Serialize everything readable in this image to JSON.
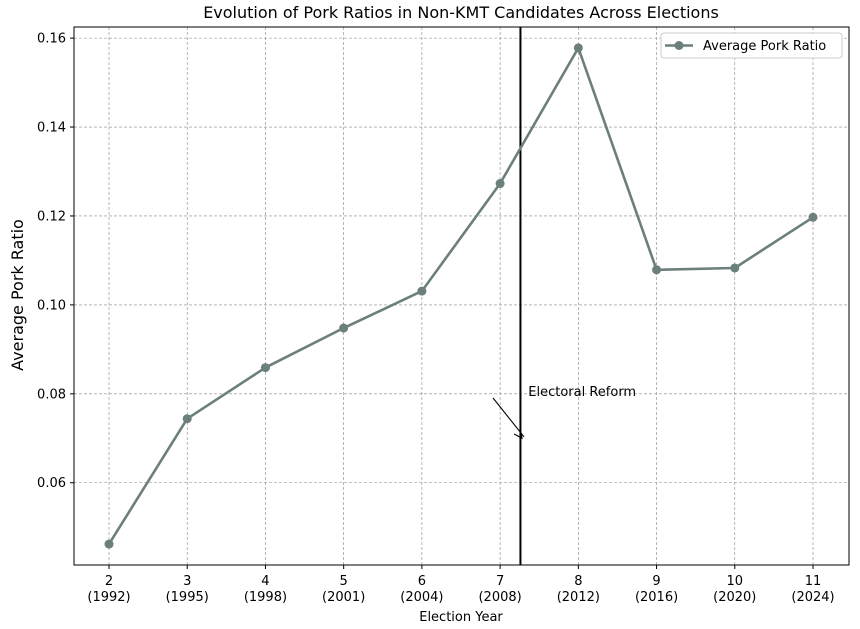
{
  "chart_data": {
    "type": "line",
    "title": "Evolution of Pork Ratios in Non-KMT Candidates Across Elections",
    "xlabel": "Election Year",
    "ylabel": "Average Pork Ratio",
    "categories": [
      {
        "term": "2",
        "year": "(1992)"
      },
      {
        "term": "3",
        "year": "(1995)"
      },
      {
        "term": "4",
        "year": "(1998)"
      },
      {
        "term": "5",
        "year": "(2001)"
      },
      {
        "term": "6",
        "year": "(2004)"
      },
      {
        "term": "7",
        "year": "(2008)"
      },
      {
        "term": "8",
        "year": "(2012)"
      },
      {
        "term": "9",
        "year": "(2016)"
      },
      {
        "term": "10",
        "year": "(2020)"
      },
      {
        "term": "11",
        "year": "(2024)"
      }
    ],
    "series": [
      {
        "name": "Average Pork Ratio",
        "values": [
          0.0462,
          0.0744,
          0.0859,
          0.0948,
          0.1031,
          0.1273,
          0.1578,
          0.1079,
          0.1083,
          0.1197
        ],
        "color": "#6b7f7c"
      }
    ],
    "ylim": [
      0.0415,
      0.1625
    ],
    "yticks": [
      "0.06",
      "0.08",
      "0.10",
      "0.12",
      "0.14",
      "0.16"
    ],
    "grid": true,
    "legend_position": "top-right",
    "reform_line_x": 5.26,
    "annotation": {
      "text": "Electoral Reform",
      "arrow_target": {
        "x": 5.28,
        "y": 0.07
      },
      "text_position": {
        "x": 5.36,
        "y": 0.0795
      }
    }
  }
}
